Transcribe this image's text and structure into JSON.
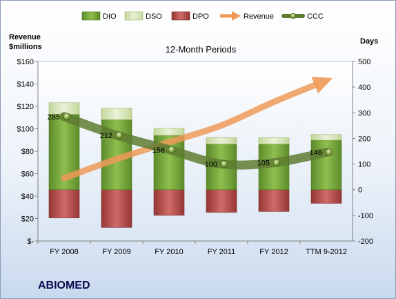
{
  "company": "ABIOMED",
  "chart_data": {
    "type": "bar",
    "title": "12-Month Periods",
    "categories": [
      "FY 2008",
      "FY 2009",
      "FY 2010",
      "FY 2011",
      "FY 2012",
      "TTM 9-2012"
    ],
    "y_left": {
      "label": "Revenue\n$millions",
      "range": [
        0,
        160
      ],
      "ticks": [
        "$-",
        "$20",
        "$40",
        "$60",
        "$80",
        "$100",
        "$120",
        "$140",
        "$160"
      ]
    },
    "y_right": {
      "label": "Days",
      "range": [
        -200,
        500
      ],
      "ticks": [
        "-200",
        "-100",
        "0",
        "100",
        "200",
        "300",
        "400",
        "500"
      ]
    },
    "series": [
      {
        "name": "DIO",
        "axis": "right",
        "values": [
          294,
          273,
          212,
          178,
          178,
          193
        ],
        "color": "#77a33c"
      },
      {
        "name": "DSO",
        "axis": "right",
        "values": [
          45,
          45,
          27,
          25,
          25,
          22
        ],
        "color": "#d7e4bd"
      },
      {
        "name": "DPO",
        "axis": "right",
        "values": [
          -110,
          -147,
          -100,
          -88,
          -85,
          -53
        ],
        "color": "#b84a48"
      },
      {
        "name": "Revenue",
        "axis": "left",
        "values": [
          56,
          73,
          88,
          103,
          124,
          143
        ],
        "color": "#ef9a58"
      },
      {
        "name": "CCC",
        "axis": "right",
        "values": [
          285,
          212,
          156,
          100,
          105,
          146
        ],
        "labels": [
          "285",
          "212",
          "156",
          "100",
          "105",
          "146"
        ],
        "color": "#5e7d31"
      }
    ],
    "legend_position": "top",
    "grid": false
  }
}
